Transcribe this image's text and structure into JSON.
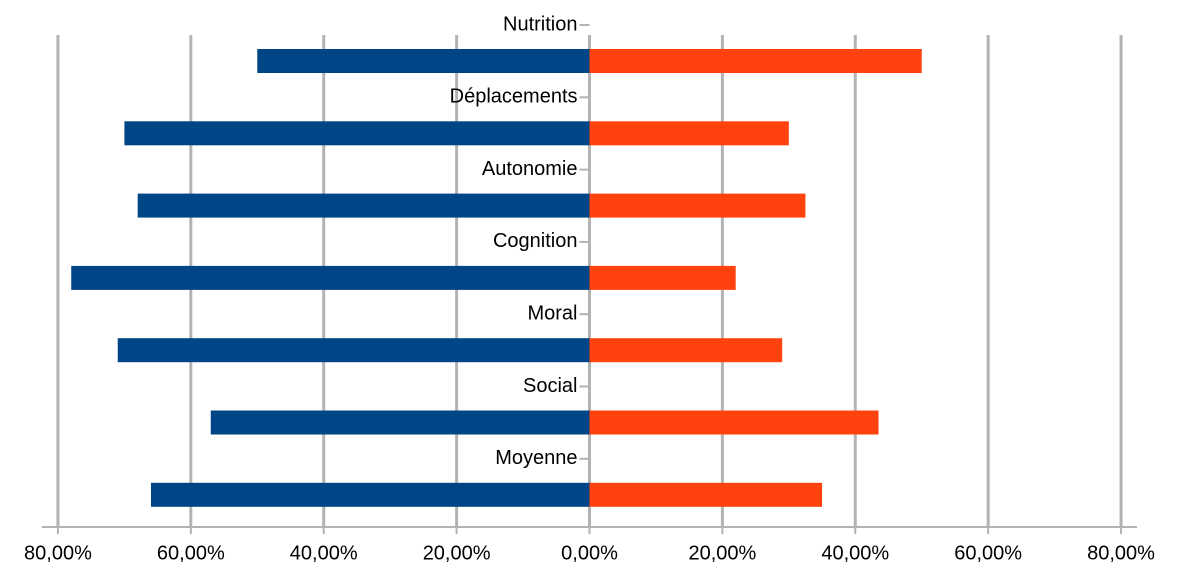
{
  "chart_data": {
    "type": "bar",
    "orientation": "horizontal",
    "categories": [
      "Nutrition",
      "Déplacements",
      "Autonomie",
      "Cognition",
      "Moral",
      "Social",
      "Moyenne"
    ],
    "series": [
      {
        "color": "#004586",
        "values": [
          -50,
          -70,
          -68,
          -78,
          -71,
          -57,
          -66
        ]
      },
      {
        "color": "#ff420e",
        "values": [
          50,
          30,
          32.5,
          22,
          29,
          43.5,
          35
        ]
      }
    ],
    "xlim": [
      -82.4,
      82.4
    ],
    "xticks": [
      {
        "value": -80,
        "label": "80,00%"
      },
      {
        "value": -60,
        "label": "60,00%"
      },
      {
        "value": -40,
        "label": "40,00%"
      },
      {
        "value": -20,
        "label": "20,00%"
      },
      {
        "value": 0,
        "label": "0,00%"
      },
      {
        "value": 20,
        "label": "20,00%"
      },
      {
        "value": 40,
        "label": "40,00%"
      },
      {
        "value": 60,
        "label": "60,00%"
      },
      {
        "value": 80,
        "label": "80,00%"
      }
    ],
    "grid": true
  }
}
